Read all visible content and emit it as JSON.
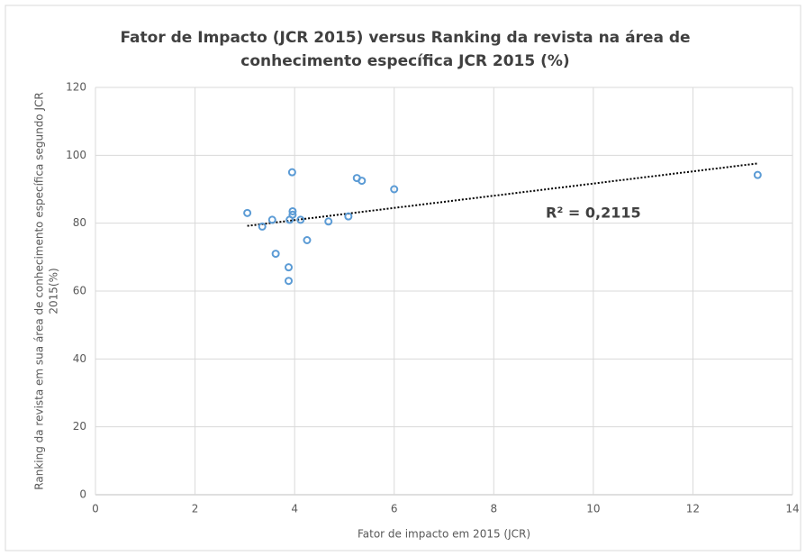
{
  "chart_data": {
    "type": "scatter",
    "title": [
      "Fator de Impacto (JCR 2015) versus Ranking da revista na área de",
      "conhecimento específica JCR 2015 (%)"
    ],
    "xlabel": "Fator de impacto em 2015 (JCR)",
    "ylabel": [
      "Ranking da revista em sua área de conhecimento específica segundo JCR",
      "2015(%)"
    ],
    "series": [
      {
        "color": "#5b9bd5",
        "x": [
          3.05,
          3.35,
          3.55,
          3.62,
          3.88,
          3.88,
          3.95,
          3.96,
          3.96,
          3.9,
          4.12,
          4.25,
          4.68,
          5.08,
          5.25,
          5.35,
          6.0,
          13.3
        ],
        "values": [
          83,
          79,
          81,
          71,
          67,
          63,
          95,
          83.5,
          82.5,
          81,
          81,
          75,
          80.5,
          82,
          93.3,
          92.5,
          90,
          94.2
        ]
      }
    ],
    "trendline": {
      "x": [
        3.05,
        13.3
      ],
      "values": [
        79.2,
        97.6
      ],
      "color": "#000000"
    },
    "annotation": "R² = 0,2115",
    "xlim": [
      0,
      14
    ],
    "xticks": [
      0,
      2,
      4,
      6,
      8,
      10,
      12,
      14
    ],
    "ylim": [
      0,
      120
    ],
    "yticks": [
      0,
      20,
      40,
      60,
      80,
      100,
      120
    ],
    "grid": true
  }
}
